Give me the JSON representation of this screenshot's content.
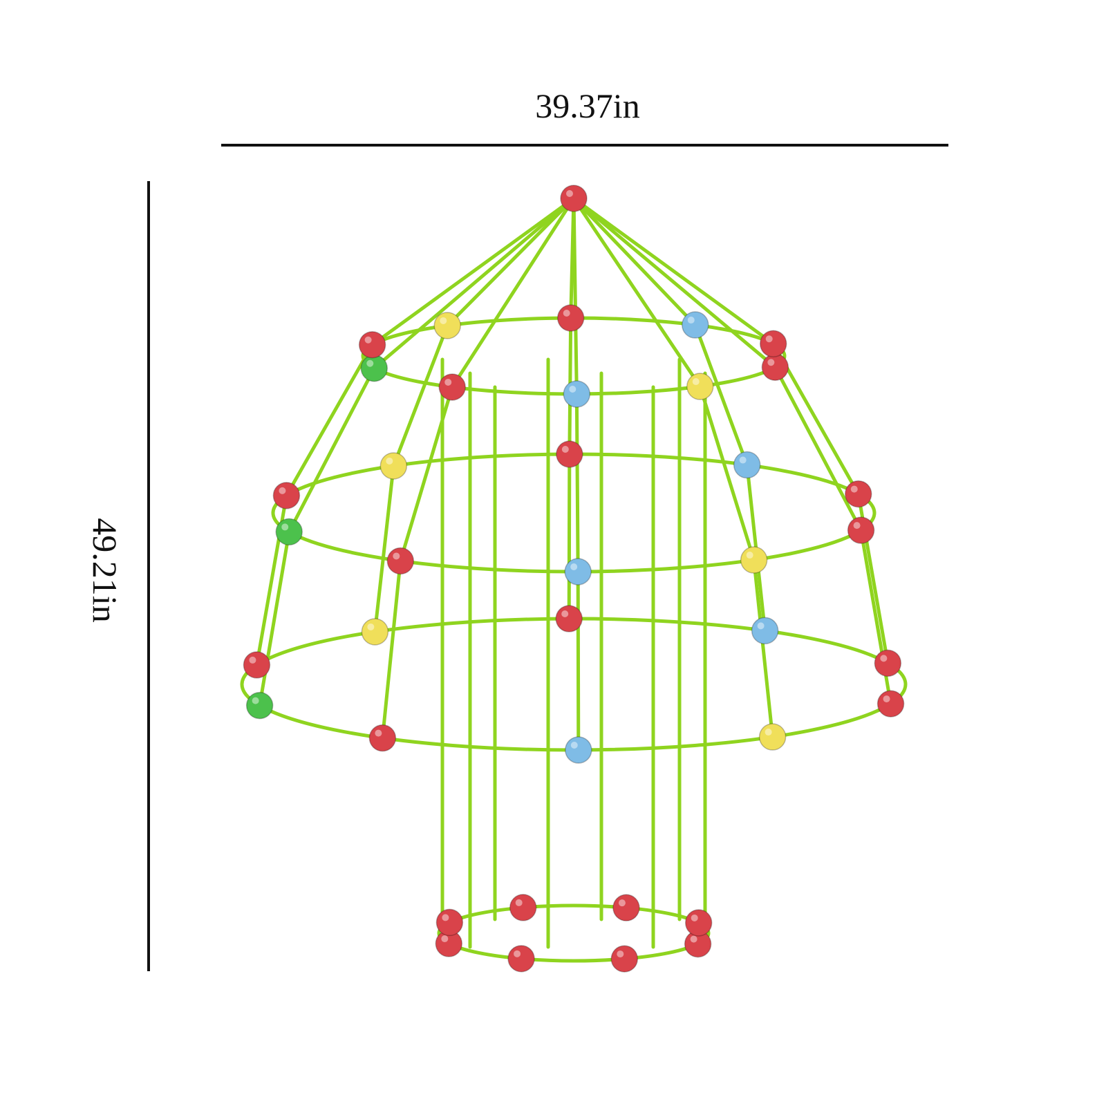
{
  "dimensions": {
    "width_label": "39.37in",
    "height_label": "49.21in"
  }
}
